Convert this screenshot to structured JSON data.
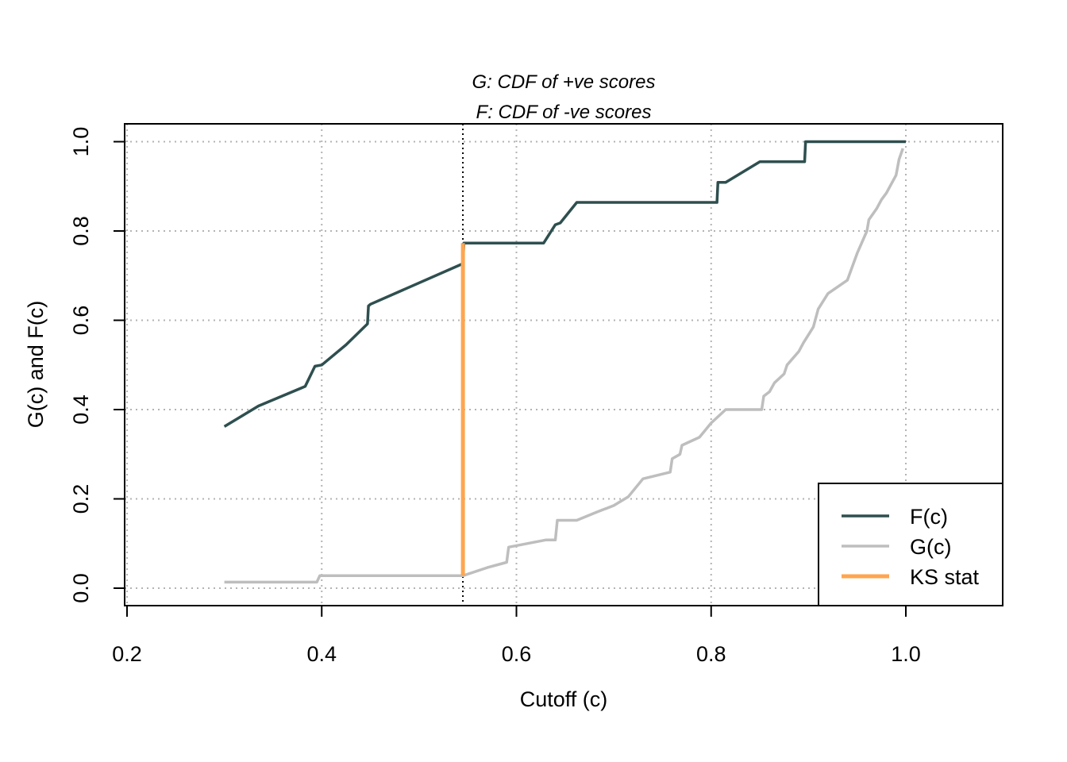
{
  "chart_data": {
    "type": "line",
    "title_lines": [
      "G: CDF of +ve scores",
      "F: CDF of -ve scores"
    ],
    "xlabel": "Cutoff (c)",
    "ylabel": "G(c) and F(c)",
    "xlim": [
      0.2,
      1.1
    ],
    "ylim": [
      0.0,
      1.0
    ],
    "x_ticks": [
      0.2,
      0.4,
      0.6,
      0.8,
      1.0
    ],
    "x_tick_labels": [
      "0.2",
      "0.4",
      "0.6",
      "0.8",
      "1.0"
    ],
    "y_ticks": [
      0.0,
      0.2,
      0.4,
      0.6,
      0.8,
      1.0
    ],
    "y_tick_labels": [
      "0.0",
      "0.2",
      "0.4",
      "0.6",
      "0.8",
      "1.0"
    ],
    "grid": true,
    "legend_position": "bottom-right",
    "ks_cutoff": 0.545,
    "series": [
      {
        "name": "F(c)",
        "color": "#2f4f4f",
        "points": [
          [
            0.3,
            0.362
          ],
          [
            0.335,
            0.408
          ],
          [
            0.383,
            0.452
          ],
          [
            0.393,
            0.497
          ],
          [
            0.4,
            0.5
          ],
          [
            0.425,
            0.545
          ],
          [
            0.447,
            0.592
          ],
          [
            0.448,
            0.632
          ],
          [
            0.45,
            0.636
          ],
          [
            0.545,
            0.727
          ],
          [
            0.546,
            0.773
          ],
          [
            0.628,
            0.773
          ],
          [
            0.64,
            0.814
          ],
          [
            0.645,
            0.818
          ],
          [
            0.662,
            0.864
          ],
          [
            0.806,
            0.864
          ],
          [
            0.807,
            0.909
          ],
          [
            0.815,
            0.909
          ],
          [
            0.85,
            0.955
          ],
          [
            0.896,
            0.955
          ],
          [
            0.897,
            1.0
          ],
          [
            1.0,
            1.0
          ]
        ]
      },
      {
        "name": "G(c)",
        "color": "#bebebe",
        "points": [
          [
            0.3,
            0.0135
          ],
          [
            0.395,
            0.0135
          ],
          [
            0.398,
            0.028
          ],
          [
            0.545,
            0.028
          ],
          [
            0.57,
            0.046
          ],
          [
            0.59,
            0.058
          ],
          [
            0.592,
            0.092
          ],
          [
            0.63,
            0.108
          ],
          [
            0.64,
            0.108
          ],
          [
            0.642,
            0.152
          ],
          [
            0.662,
            0.152
          ],
          [
            0.682,
            0.17
          ],
          [
            0.7,
            0.185
          ],
          [
            0.715,
            0.205
          ],
          [
            0.73,
            0.245
          ],
          [
            0.758,
            0.26
          ],
          [
            0.76,
            0.29
          ],
          [
            0.768,
            0.3
          ],
          [
            0.77,
            0.32
          ],
          [
            0.788,
            0.338
          ],
          [
            0.8,
            0.37
          ],
          [
            0.815,
            0.4
          ],
          [
            0.852,
            0.4
          ],
          [
            0.854,
            0.43
          ],
          [
            0.86,
            0.44
          ],
          [
            0.865,
            0.46
          ],
          [
            0.875,
            0.48
          ],
          [
            0.878,
            0.5
          ],
          [
            0.89,
            0.53
          ],
          [
            0.895,
            0.55
          ],
          [
            0.905,
            0.585
          ],
          [
            0.91,
            0.625
          ],
          [
            0.92,
            0.66
          ],
          [
            0.94,
            0.69
          ],
          [
            0.95,
            0.75
          ],
          [
            0.96,
            0.8
          ],
          [
            0.962,
            0.825
          ],
          [
            0.97,
            0.85
          ],
          [
            0.975,
            0.87
          ],
          [
            0.98,
            0.885
          ],
          [
            0.99,
            0.925
          ],
          [
            0.993,
            0.96
          ],
          [
            0.997,
            0.985
          ]
        ]
      },
      {
        "name": "KS stat",
        "color": "#ffa54f",
        "points": [
          [
            0.545,
            0.028
          ],
          [
            0.545,
            0.773
          ]
        ]
      }
    ]
  }
}
